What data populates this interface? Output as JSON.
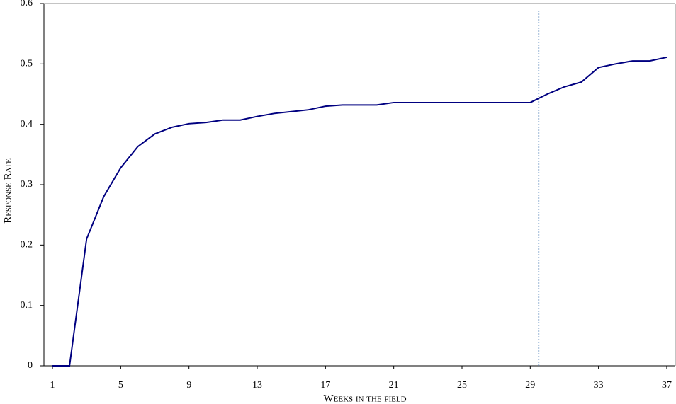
{
  "chart_data": {
    "type": "line",
    "x_label": "Weeks in the field",
    "y_label": "Response Rate",
    "x": [
      1,
      2,
      3,
      4,
      5,
      6,
      7,
      8,
      9,
      10,
      11,
      12,
      13,
      14,
      15,
      16,
      17,
      18,
      19,
      20,
      21,
      22,
      23,
      24,
      25,
      26,
      27,
      28,
      29,
      30,
      31,
      32,
      33,
      34,
      35,
      36,
      37
    ],
    "series": [
      {
        "color": "#000080",
        "values": [
          0,
          0,
          0.21,
          0.28,
          0.328,
          0.363,
          0.384,
          0.395,
          0.401,
          0.403,
          0.407,
          0.407,
          0.413,
          0.418,
          0.421,
          0.424,
          0.43,
          0.432,
          0.432,
          0.432,
          0.436,
          0.436,
          0.436,
          0.436,
          0.436,
          0.436,
          0.436,
          0.436,
          0.436,
          0.45,
          0.462,
          0.47,
          0.494,
          0.5,
          0.505,
          0.505,
          0.511
        ]
      }
    ],
    "reference_x": 29.5,
    "reference_color": "#4a7ab5",
    "xlim": [
      0.5,
      37.5
    ],
    "xticks": [
      1,
      5,
      9,
      13,
      17,
      21,
      25,
      29,
      33,
      37
    ],
    "ylim": [
      0,
      0.6
    ],
    "yticks": [
      0,
      0.1,
      0.2,
      0.3,
      0.4,
      0.5,
      0.6
    ],
    "grid": false
  }
}
